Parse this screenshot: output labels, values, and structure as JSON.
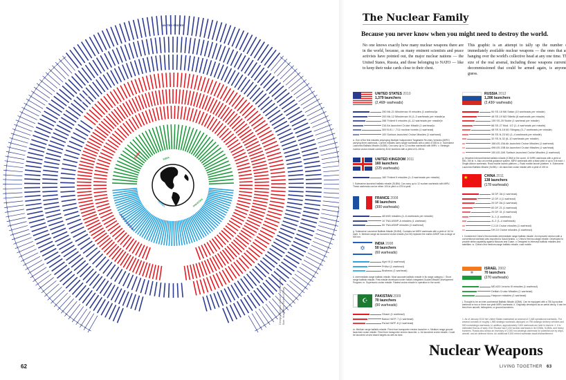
{
  "left_page": {
    "page_number": "62",
    "credit": "Design: Richard Johnson with Andrew Barr. Illustration: Richard Pearl"
  },
  "right_page": {
    "title": "The Nuclear Family",
    "subtitle": "Because you never know when you might need to destroy the world.",
    "intro_col1": "No one knows exactly how many nuclear weapons there are in the world, because, as many eminent scientists and peace activists have pointed out, the major nuclear nations — the United States, Russia, and those belonging to NATO — like to keep their nuke cards close to their chest.",
    "intro_col2": "This graphic is an attempt to tally up the number of immediately available nuclear weapons — the ones that are hanging over the world's collective head at any one time. The size of the real arsenal, including those weapons currently decommissioned that could be armed again, is anyone's guess.",
    "section_title": "Nuclear Weapons",
    "section_label": "LIVING TOGETHER",
    "page_number": "63",
    "footnotes": "1. As of January 2010 the United States maintained an arsenal of 2,468 operational warheads. The arsenal consists of roughly 1,968 strategic warheads deployed on 798 strategic delivery vehicles and 500 nonstrategic warheads. In addition, approximately 2,600 warheads are held in reserve. 2. It is estimated that as of early 2012 Russia had 2,430 nuclear warheads in its ICBMs, SLBMs, and heavy bombers. Russia also keeps an inventory of 2,000 non-strategic warheads for potential use by ships, aircraft, and air defense forces. An additional 5,500 retired warheads await dismantlement."
  },
  "colors": {
    "usa": "#2b3a8f",
    "russia": "#e3191f",
    "china": "#e3191f",
    "india": "#1e9a3c",
    "israel": "#2aa3e0",
    "pakistan": "#1e9a3c"
  },
  "countries": [
    {
      "name": "UNITED STATES",
      "year": "2010",
      "launchers": "1,379 launchers",
      "warheads": "(2,468¹ warheads)",
      "weapons": [
        "250 Mk-21 Minuteman III missiles (1 warhead)a",
        "200 Mk-12 Minuteman III (1–3 warheads per missile)a",
        "288 Trident II missiles (4–12 warheads per missile)b",
        "216 Air-launched Cruise Missile (1 warhead)c",
        "300 B-61 / -7/11 nuclear bombs (1 warhead)",
        "100 Surface-launched Cruise Missiles (1 warhead)"
      ],
      "note": "a. One of the first missiles employing Multiple Independent Targetable Re-entry Vehicles (MIRV) carrying three warheads. Current missiles carry single warheads with a yield of 335 kt. b. Submarine Launched Ballistic Missile (SLBM). Can carry up to 12 nuclear warheads with MIRV. c. Strategic nuclear cruise missile carried by B-52 bombers with a yield of 5–150 kt."
    },
    {
      "name": "RUSSIA",
      "year": "2012",
      "launchers": "1,286 launchers",
      "warheads": "(2,430² warheads)",
      "weapons": [
        "50 SS-18 M6 Satan (10 warheads per missile)",
        "48 SS-19 M3 Stiletto (6 warheads per missile)",
        "135 SS-25 Sickle (1 warhead per missile)",
        "88 SS-27 Mod. 1/2 (1–4 warheads per missile)",
        "48 SS-N-18 M1 Stingray (3–7 warheads per missile)",
        "96 SS-N-23 M1 (1–4 warheads per missile)",
        "32 SS-N-32 (6–10 warheads per missile)",
        "168 AS-15A Air-launched Cruise Missiles (1 warhead)",
        "498 AS-15B Air-launched Cruise Missiles (1 warhead)",
        "150 AS-16K Surface-launched Cruise Missiles (1 warhead)"
      ],
      "note": "g. Heaviest intercontinental ballistic missile (ICBM) in the world, 10 MIRV warheads with a yield of 550–750 kt. h. Also an inertial guidance system, MIRV warheads with a blast yield of up to 5 kt each. i. Single-kiloton warheads. Road mobile launch platform. j. Road mobile launch platform. k. Submarine Launched Ballistic Missile (SLBM). l. Air-launched cruise missile with a yield of 200 kt."
    },
    {
      "name": "UNITED KINGDOM",
      "year": "2011",
      "launchers": "160 launchers",
      "warheads": "(225 warheads)",
      "weapons": [
        "160 Trident II missiles (1–3 warheads per missile)"
      ],
      "note": "f. Submarine launched ballistic missile (SLBM). Can carry up to 12 nuclear warheads with MIRV. These warheads can be either 100 kt yield or 475 kt yield."
    },
    {
      "name": "CHINA",
      "year": "2011",
      "launchers": "138 launchers",
      "warheads": "(178 warheads)",
      "weapons": [
        "16 DF-3A (1 warhead)",
        "12 DF-4 (1 warhead)",
        "20 DF-5A (1 warhead)",
        "60 DF-21 (1 warhead)",
        "20 DF-31 (1 warhead)",
        "JL-1 (1 warhead)",
        "JL-2 (1–4 warheads)",
        "CJ-10 Cruise missiles (1 warhead)",
        "DH-10 Cruise missiles (1 warhead)"
      ],
      "note": "t. Considered China's first domestic intermediate range ballistic missile. An improved version with a conventional warhead was exported to Saudi Arabia. u. China's first two-stage missile. Developed to provide strike capability against Moscow and Guam. v. Designed to intercept ballistic missiles and satellites. w. China's first medium-range ballistic missile, road mobile."
    },
    {
      "name": "FRANCE",
      "year": "2008",
      "launchers": "98 launchers",
      "warheads": "(300 warheads)",
      "weapons": [
        "48 M45 missiles (4–6 warheads per missile)",
        "10 TNA ASMP-A missiles (1 warhead)",
        "50 TNA ASMP missiles (1 warhead)"
      ],
      "note": "g. Submarine Launched Ballistic Missile (SLBM). Contains six MIRV warheads with a yield of 110 kt each. h. Medium range air-launched cruise missile (ALCM) replaced the earlier ASMP, has a range of 500 km."
    },
    {
      "name": "ISRAEL",
      "year": "2002",
      "launchers": "70 launchers",
      "warheads": "(270 warheads)",
      "weapons": [
        "MD-620 Jericho III missiles (1 warhead)",
        "Delilah Cruise Missiles (1 warhead)",
        "Harpoon missiles (1 warhead)"
      ],
      "note": "j. Thought to be an inter-continental Ballistic Missile (ICBM). Can be equipped with a 750 kg nuclear warhead or two or three low yield MIRV warheads. k. Originally developed as an aerial decoy. It can be fired from aircraft, helicopters, or ground launchers."
    },
    {
      "name": "INDIA",
      "year": "2008",
      "launchers": "50 launchers",
      "warheads": "(60 warheads)",
      "weapons": [
        "Agni III (1 warhead)",
        "Prithvi (1 warhead)",
        "Brahmos (1 warhead)"
      ],
      "note": "k. Intermediate-range ballistic missile. Most accurate ballistic missile in its range category. l. Short range ballistic missile. First missile developed under India's Integrated Guided Missile Development Program. m. Supersonic cruise missile. Fastest cruise missile in operation in the world."
    },
    {
      "name": "PAKISTAN",
      "year": "2009",
      "launchers": "70 launchers",
      "warheads": "(90 warheads)",
      "weapons": [
        "Ghauri (1 warhead)",
        "Babur HATF-7 (1 warhead)",
        "Ra'ad HATF-8 (1 warhead)"
      ],
      "note": "m. Medium range ballistic missile. Fired from transporter erector launcher. n. Medium range ground launched cruise missile. Fired from transporter erector launcher. o. Air launched cruise missile. Could be launched at sea based targets as well as land."
    }
  ],
  "chart_data": {
    "type": "radial-tally",
    "title": "The Nuclear Family",
    "series": [
      {
        "name": "UNITED STATES",
        "launchers": 1379,
        "warheads": 2468
      },
      {
        "name": "RUSSIA",
        "launchers": 1286,
        "warheads": 2430
      },
      {
        "name": "UNITED KINGDOM",
        "launchers": 160,
        "warheads": 225
      },
      {
        "name": "FRANCE",
        "launchers": 98,
        "warheads": 300
      },
      {
        "name": "CHINA",
        "launchers": 138,
        "warheads": 178
      },
      {
        "name": "ISRAEL",
        "launchers": 70,
        "warheads": 270
      },
      {
        "name": "INDIA",
        "launchers": 50,
        "warheads": 60
      },
      {
        "name": "PAKISTAN",
        "launchers": 70,
        "warheads": 90
      }
    ],
    "ring_labels": [
      "UNITED STATES",
      "RUSSIA",
      "CHINA",
      "INDIA",
      "ISRAEL",
      "FRANCE",
      "UNITED KINGDOM",
      "PAKISTAN"
    ]
  }
}
